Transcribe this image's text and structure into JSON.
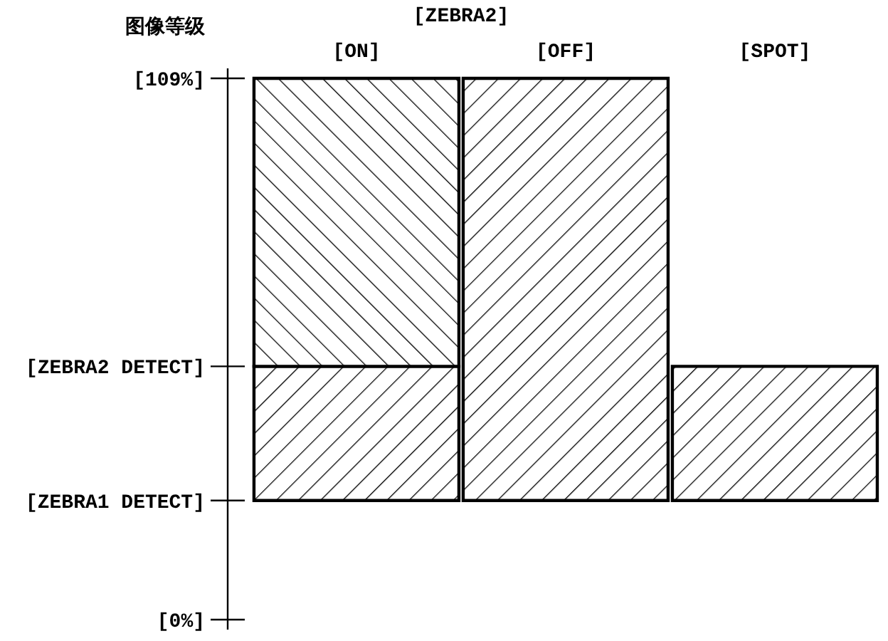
{
  "chart_data": {
    "type": "bar",
    "ylabel": "图像等级",
    "annotations": [
      "[ZEBRA2]"
    ],
    "categories": [
      "[ON]",
      "[OFF]",
      "[SPOT]"
    ],
    "series": [
      {
        "color": "#000000",
        "values": [
          27,
          85,
          27
        ],
        "base": [
          24,
          24,
          24
        ]
      },
      {
        "color": "#000000",
        "values": [
          58,
          null,
          null
        ],
        "base": [
          51,
          null,
          null
        ]
      }
    ],
    "ylim": [
      -2,
      111
    ],
    "yticks": [
      {
        "value": 0,
        "label": "[0%]"
      },
      {
        "value": 24,
        "label": "[ZEBRA1 DETECT]"
      },
      {
        "value": 51,
        "label": "[ZEBRA2 DETECT]"
      },
      {
        "value": 109,
        "label": "[109%]"
      }
    ],
    "grid": false,
    "legend": false
  }
}
